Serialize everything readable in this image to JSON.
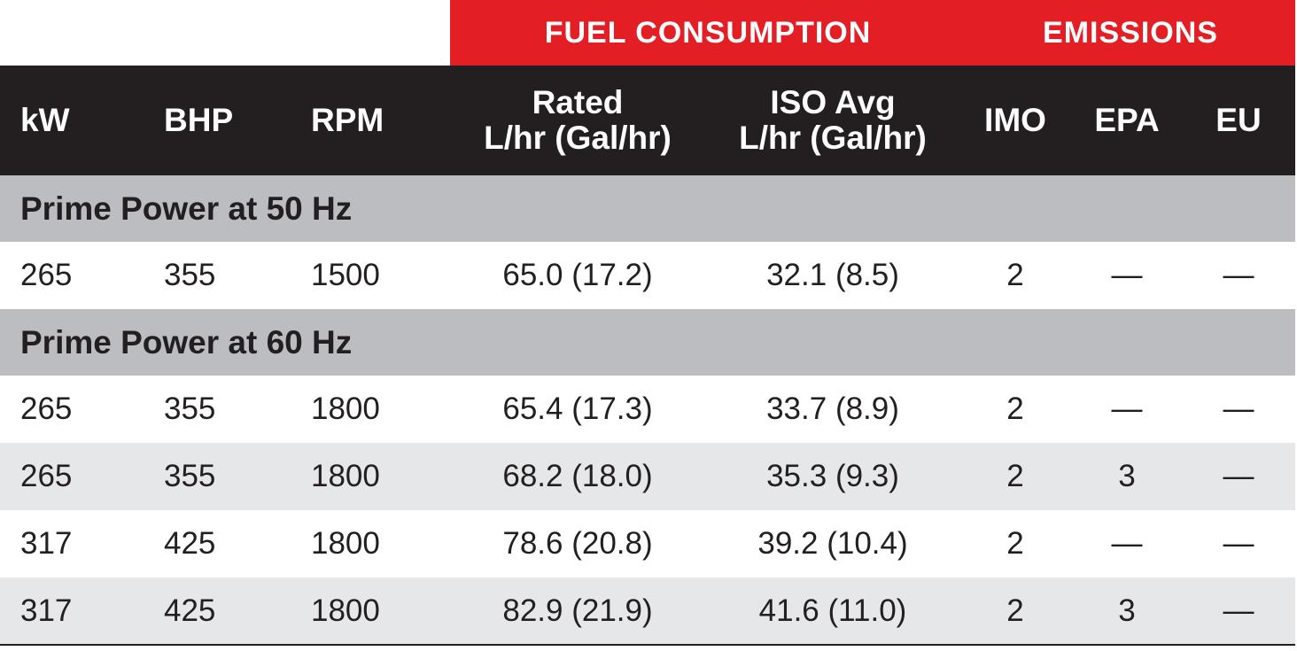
{
  "groups": {
    "fuel_consumption": "FUEL CONSUMPTION",
    "emissions": "EMISSIONS"
  },
  "headers": {
    "kw": "kW",
    "bhp": "BHP",
    "rpm": "RPM",
    "rated_line1": "Rated",
    "rated_line2": "L/hr (Gal/hr)",
    "iso_line1": "ISO Avg",
    "iso_line2": "L/hr (Gal/hr)",
    "imo": "IMO",
    "epa": "EPA",
    "eu": "EU"
  },
  "sections": [
    {
      "title": "Prime Power at 50 Hz",
      "rows": [
        {
          "kw": "265",
          "bhp": "355",
          "rpm": "1500",
          "rated": "65.0 (17.2)",
          "iso": "32.1 (8.5)",
          "imo": "2",
          "epa": "—",
          "eu": "—"
        }
      ]
    },
    {
      "title": "Prime Power at 60 Hz",
      "rows": [
        {
          "kw": "265",
          "bhp": "355",
          "rpm": "1800",
          "rated": "65.4 (17.3)",
          "iso": "33.7 (8.9)",
          "imo": "2",
          "epa": "—",
          "eu": "—"
        },
        {
          "kw": "265",
          "bhp": "355",
          "rpm": "1800",
          "rated": "68.2 (18.0)",
          "iso": "35.3 (9.3)",
          "imo": "2",
          "epa": "3",
          "eu": "—"
        },
        {
          "kw": "317",
          "bhp": "425",
          "rpm": "1800",
          "rated": "78.6 (20.8)",
          "iso": "39.2 (10.4)",
          "imo": "2",
          "epa": "—",
          "eu": "—"
        },
        {
          "kw": "317",
          "bhp": "425",
          "rpm": "1800",
          "rated": "82.9 (21.9)",
          "iso": "41.6 (11.0)",
          "imo": "2",
          "epa": "3",
          "eu": "—"
        }
      ]
    }
  ],
  "colors": {
    "group_bar": "#e31e24",
    "header_bg": "#231f20",
    "section_bg": "#bcbdc0",
    "row_shade": "#e6e7e8"
  }
}
